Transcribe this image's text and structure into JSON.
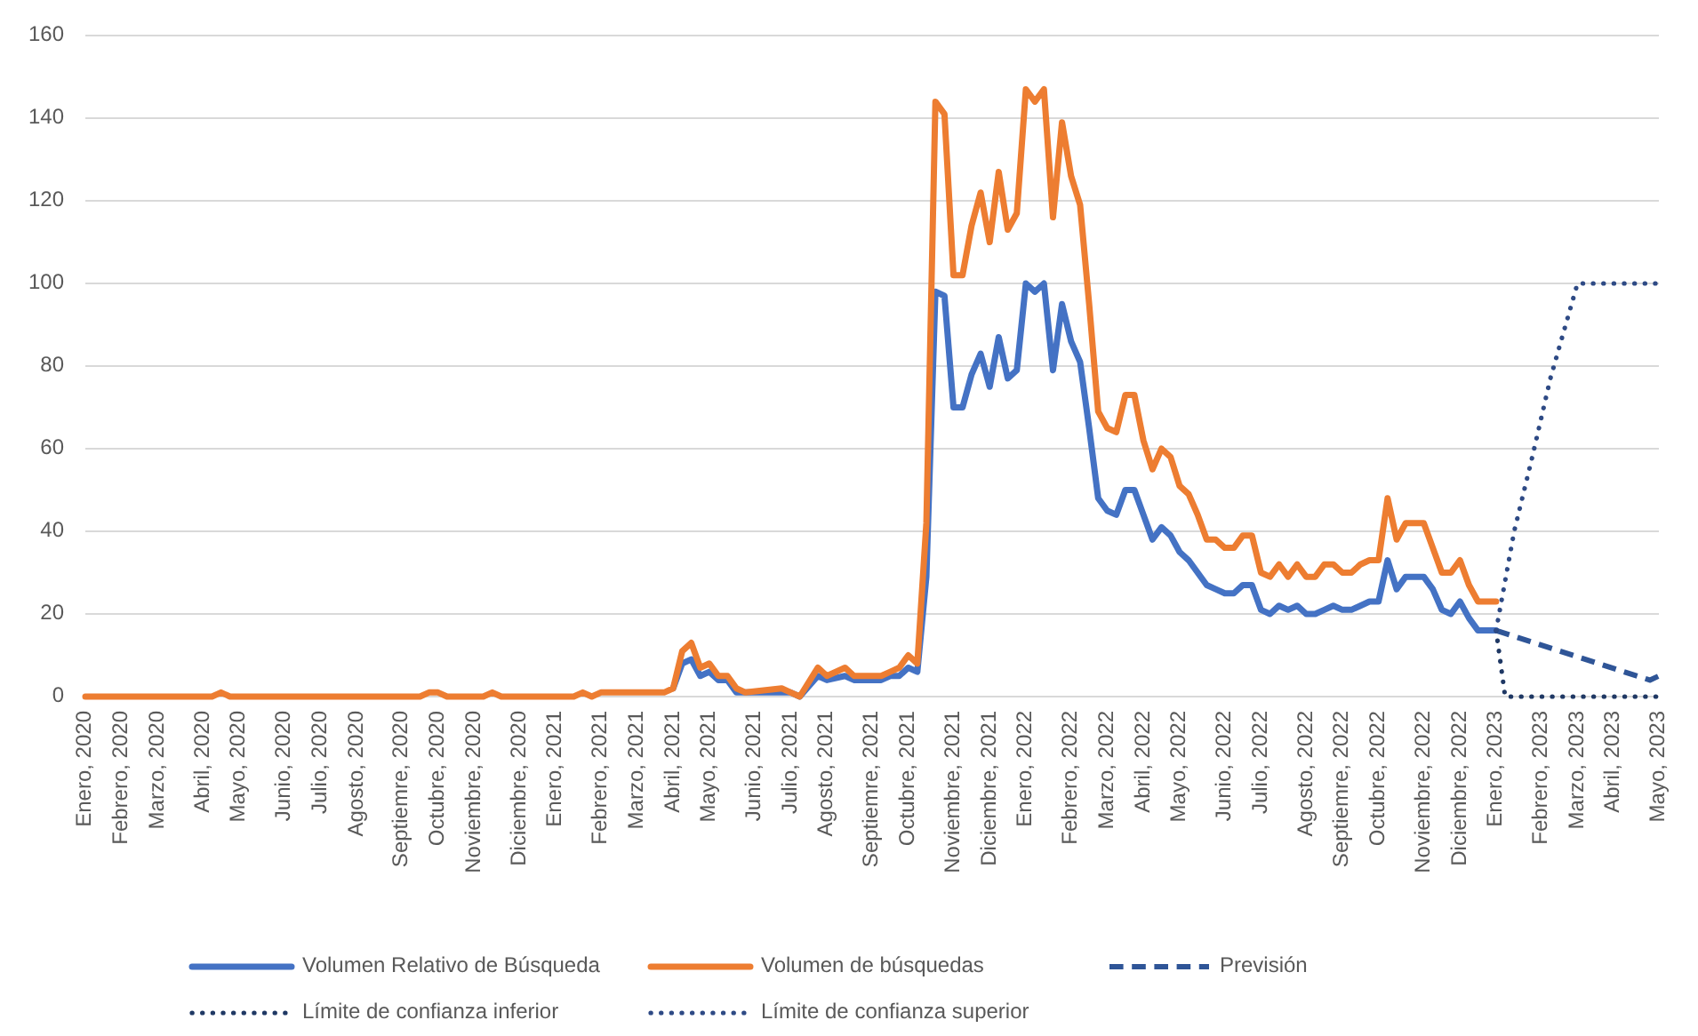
{
  "chart_data": {
    "type": "line",
    "grid": "y",
    "legend": "bottom",
    "ylim": [
      0,
      160
    ],
    "yticks": [
      0,
      20,
      40,
      60,
      80,
      100,
      120,
      140,
      160
    ],
    "xlim": [
      "2020-01-05",
      "2023-05-07"
    ],
    "xticks": [
      {
        "value": "2020-01-05",
        "label": "Enero, 2020"
      },
      {
        "value": "2020-02-02",
        "label": "Febrero, 2020"
      },
      {
        "value": "2020-03-01",
        "label": "Marzo, 2020"
      },
      {
        "value": "2020-04-05",
        "label": "Abril, 2020"
      },
      {
        "value": "2020-05-03",
        "label": "Mayo, 2020"
      },
      {
        "value": "2020-06-07",
        "label": "Junio, 2020"
      },
      {
        "value": "2020-07-05",
        "label": "Julio, 2020"
      },
      {
        "value": "2020-08-02",
        "label": "Agosto, 2020"
      },
      {
        "value": "2020-09-06",
        "label": "Septiemre, 2020"
      },
      {
        "value": "2020-10-04",
        "label": "Octubre, 2020"
      },
      {
        "value": "2020-11-01",
        "label": "Noviembre, 2020"
      },
      {
        "value": "2020-12-06",
        "label": "Diciembre, 2020"
      },
      {
        "value": "2021-01-03",
        "label": "Enero, 2021"
      },
      {
        "value": "2021-02-07",
        "label": "Febrero, 2021"
      },
      {
        "value": "2021-03-07",
        "label": "Marzo, 2021"
      },
      {
        "value": "2021-04-04",
        "label": "Abril, 2021"
      },
      {
        "value": "2021-05-02",
        "label": "Mayo, 2021"
      },
      {
        "value": "2021-06-06",
        "label": "Junio, 2021"
      },
      {
        "value": "2021-07-04",
        "label": "Julio, 2021"
      },
      {
        "value": "2021-08-01",
        "label": "Agosto, 2021"
      },
      {
        "value": "2021-09-05",
        "label": "Septiemre, 2021"
      },
      {
        "value": "2021-10-03",
        "label": "Octubre, 2021"
      },
      {
        "value": "2021-11-07",
        "label": "Noviembre, 2021"
      },
      {
        "value": "2021-12-05",
        "label": "Diciembre, 2021"
      },
      {
        "value": "2022-01-02",
        "label": "Enero, 2022"
      },
      {
        "value": "2022-02-06",
        "label": "Febrero, 2022"
      },
      {
        "value": "2022-03-06",
        "label": "Marzo, 2022"
      },
      {
        "value": "2022-04-03",
        "label": "Abril, 2022"
      },
      {
        "value": "2022-05-01",
        "label": "Mayo, 2022"
      },
      {
        "value": "2022-06-05",
        "label": "Junio, 2022"
      },
      {
        "value": "2022-07-03",
        "label": "Julio, 2022"
      },
      {
        "value": "2022-08-07",
        "label": "Agosto, 2022"
      },
      {
        "value": "2022-09-04",
        "label": "Septiemre, 2022"
      },
      {
        "value": "2022-10-02",
        "label": "Octubre, 2022"
      },
      {
        "value": "2022-11-06",
        "label": "Noviembre, 2022"
      },
      {
        "value": "2022-12-04",
        "label": "Diciembre, 2022"
      },
      {
        "value": "2023-01-01",
        "label": "Enero, 2023"
      },
      {
        "value": "2023-02-05",
        "label": "Febrero, 2023"
      },
      {
        "value": "2023-03-05",
        "label": "Marzo, 2023"
      },
      {
        "value": "2023-04-02",
        "label": "Abril, 2023"
      },
      {
        "value": "2023-05-07",
        "label": "Mayo, 2023"
      }
    ],
    "x": [
      "2020-01-05",
      "2020-04-12",
      "2020-04-19",
      "2020-04-26",
      "2020-09-20",
      "2020-09-27",
      "2020-10-04",
      "2020-10-11",
      "2020-11-08",
      "2020-11-15",
      "2020-11-22",
      "2021-01-17",
      "2021-01-24",
      "2021-01-31",
      "2021-02-07",
      "2021-03-28",
      "2021-04-04",
      "2021-04-11",
      "2021-04-18",
      "2021-04-25",
      "2021-05-02",
      "2021-05-09",
      "2021-05-16",
      "2021-05-23",
      "2021-05-30",
      "2021-06-27",
      "2021-07-04",
      "2021-07-11",
      "2021-07-25",
      "2021-08-01",
      "2021-08-15",
      "2021-08-22",
      "2021-09-12",
      "2021-09-19",
      "2021-09-26",
      "2021-10-03",
      "2021-10-10",
      "2021-10-17",
      "2021-10-24",
      "2021-10-31",
      "2021-11-07",
      "2021-11-14",
      "2021-11-21",
      "2021-11-28",
      "2021-12-05",
      "2021-12-12",
      "2021-12-19",
      "2021-12-26",
      "2022-01-02",
      "2022-01-09",
      "2022-01-16",
      "2022-01-23",
      "2022-01-30",
      "2022-02-06",
      "2022-02-13",
      "2022-02-20",
      "2022-02-27",
      "2022-03-06",
      "2022-03-13",
      "2022-03-20",
      "2022-03-27",
      "2022-04-03",
      "2022-04-10",
      "2022-04-17",
      "2022-04-24",
      "2022-05-01",
      "2022-05-08",
      "2022-05-15",
      "2022-05-22",
      "2022-05-29",
      "2022-06-05",
      "2022-06-12",
      "2022-06-19",
      "2022-06-26",
      "2022-07-03",
      "2022-07-10",
      "2022-07-17",
      "2022-07-24",
      "2022-07-31",
      "2022-08-07",
      "2022-08-14",
      "2022-08-21",
      "2022-08-28",
      "2022-09-04",
      "2022-09-11",
      "2022-09-18",
      "2022-09-25",
      "2022-10-02",
      "2022-10-09",
      "2022-10-16",
      "2022-10-23",
      "2022-10-30",
      "2022-11-06",
      "2022-11-13",
      "2022-11-20",
      "2022-11-27",
      "2022-12-04",
      "2022-12-11",
      "2022-12-18",
      "2022-12-25",
      "2023-01-01"
    ],
    "series": [
      {
        "name": "Volumen Relativo de Búsqueda",
        "color": "#4472c4",
        "line_style": "solid",
        "values": [
          null,
          null,
          null,
          null,
          null,
          null,
          null,
          null,
          null,
          null,
          null,
          null,
          null,
          null,
          null,
          null,
          2,
          8,
          9,
          5,
          6,
          4,
          4,
          1,
          1,
          1,
          1,
          0,
          5,
          4,
          5,
          4,
          4,
          5,
          5,
          7,
          6,
          29,
          98,
          97,
          70,
          70,
          78,
          83,
          75,
          87,
          77,
          79,
          100,
          98,
          100,
          79,
          95,
          86,
          81,
          65,
          48,
          45,
          44,
          50,
          50,
          44,
          38,
          41,
          39,
          35,
          33,
          30,
          27,
          26,
          25,
          25,
          27,
          27,
          21,
          20,
          22,
          21,
          22,
          20,
          20,
          21,
          22,
          21,
          21,
          22,
          23,
          23,
          33,
          26,
          29,
          29,
          29,
          26,
          21,
          20,
          23,
          19,
          16,
          16,
          16
        ]
      },
      {
        "name": "Volumen de búsquedas",
        "color": "#ed7d31",
        "line_style": "solid",
        "values": [
          0,
          0,
          1,
          0,
          0,
          1,
          1,
          0,
          0,
          1,
          0,
          0,
          1,
          0,
          1,
          1,
          2,
          11,
          13,
          7,
          8,
          5,
          5,
          2,
          1,
          2,
          1,
          0,
          7,
          5,
          7,
          5,
          5,
          6,
          7,
          10,
          8,
          42,
          144,
          141,
          102,
          102,
          114,
          122,
          110,
          127,
          113,
          117,
          147,
          144,
          147,
          116,
          139,
          126,
          119,
          95,
          69,
          65,
          64,
          73,
          73,
          62,
          55,
          60,
          58,
          51,
          49,
          44,
          38,
          38,
          36,
          36,
          39,
          39,
          30,
          29,
          32,
          29,
          32,
          29,
          29,
          32,
          32,
          30,
          30,
          32,
          33,
          33,
          48,
          38,
          42,
          42,
          42,
          36,
          30,
          30,
          33,
          27,
          23,
          23,
          23
        ]
      },
      {
        "name": "Previsión",
        "color": "#2f5597",
        "line_style": "dashed",
        "x": [
          "2023-01-01",
          "2023-04-30",
          "2023-05-07"
        ],
        "values": [
          16,
          4,
          5
        ]
      },
      {
        "name": "Límite de confianza inferior",
        "color": "#1f3864",
        "line_style": "dotted",
        "x": [
          "2023-01-01",
          "2023-01-08",
          "2023-05-07"
        ],
        "values": [
          16,
          0,
          0
        ]
      },
      {
        "name": "Límite de confianza superior",
        "color": "#2e4a85",
        "line_style": "dotted",
        "x": [
          "2023-01-01",
          "2023-01-15",
          "2023-01-29",
          "2023-02-12",
          "2023-03-05",
          "2023-05-07"
        ],
        "values": [
          16,
          40,
          58,
          77,
          100,
          100
        ]
      }
    ]
  }
}
